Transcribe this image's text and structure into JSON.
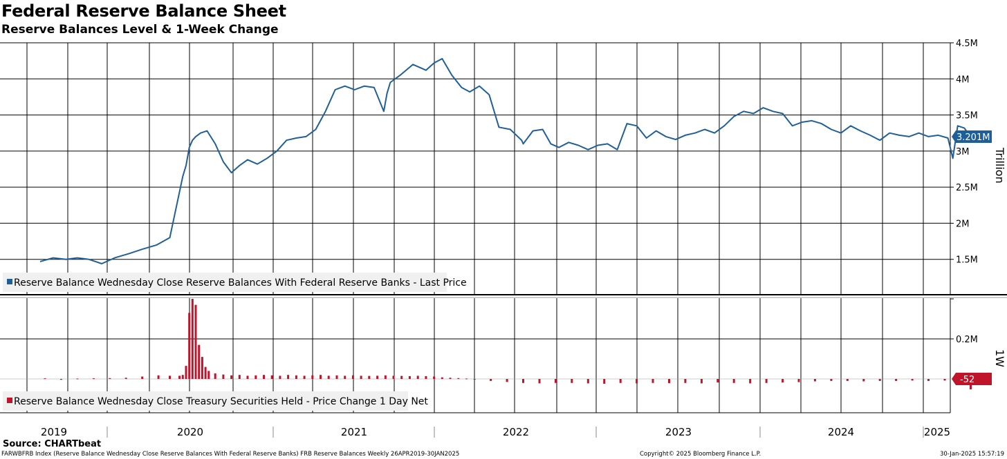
{
  "title": "Federal Reserve Balance Sheet",
  "subtitle": "Reserve Balances Level & 1-Week Change",
  "source": "Source: CHARTbeat",
  "footer": {
    "left": "FARWBFRB Index (Reserve Balance Wednesday Close Reserve Balances With Federal Reserve Banks) FRB Reserve Balances  Weekly 26APR2019-30JAN2025",
    "middle": "Copyright© 2025 Bloomberg Finance L.P.",
    "right": "30-Jan-2025 15:57:19"
  },
  "colors": {
    "line": "#1f5f99",
    "bar": "#c0142a",
    "grid": "#000000"
  },
  "chart_data": [
    {
      "type": "line",
      "ylabel": "Trillion",
      "ylim": [
        1.0,
        4.5
      ],
      "yticks": [
        {
          "value": 4.5,
          "label": "4.5M"
        },
        {
          "value": 4.0,
          "label": "4M"
        },
        {
          "value": 3.5,
          "label": "3.5M"
        },
        {
          "value": 3.0,
          "label": "3M"
        },
        {
          "value": 2.5,
          "label": "2.5M"
        },
        {
          "value": 2.0,
          "label": "2M"
        },
        {
          "value": 1.5,
          "label": "1.5M"
        }
      ],
      "last_value_label": "3.201M",
      "legend": "Reserve Balance Wednesday Close Reserve Balances With Federal Reserve Banks - Last Price",
      "series": [
        {
          "name": "Reserve Balance Wednesday Close Reserve Balances With Federal Reserve Banks - Last Price",
          "x": [
            2019.32,
            2019.4,
            2019.48,
            2019.55,
            2019.62,
            2019.7,
            2019.78,
            2019.87,
            2019.95,
            2020.04,
            2020.12,
            2020.2,
            2020.22,
            2020.24,
            2020.26,
            2020.28,
            2020.31,
            2020.35,
            2020.4,
            2020.45,
            2020.5,
            2020.55,
            2020.6,
            2020.66,
            2020.72,
            2020.78,
            2020.84,
            2020.9,
            2020.96,
            2021.02,
            2021.08,
            2021.14,
            2021.2,
            2021.26,
            2021.32,
            2021.38,
            2021.44,
            2021.46,
            2021.48,
            2021.54,
            2021.62,
            2021.7,
            2021.75,
            2021.8,
            2021.86,
            2021.92,
            2021.97,
            2022.03,
            2022.09,
            2022.15,
            2022.22,
            2022.29,
            2022.3,
            2022.36,
            2022.42,
            2022.47,
            2022.52,
            2022.58,
            2022.64,
            2022.7,
            2022.76,
            2022.82,
            2022.88,
            2022.94,
            2023.0,
            2023.06,
            2023.12,
            2023.18,
            2023.24,
            2023.3,
            2023.36,
            2023.42,
            2023.48,
            2023.54,
            2023.6,
            2023.66,
            2023.72,
            2023.78,
            2023.84,
            2023.9,
            2023.96,
            2024.02,
            2024.08,
            2024.14,
            2024.2,
            2024.26,
            2024.32,
            2024.38,
            2024.44,
            2024.5,
            2024.56,
            2024.62,
            2024.68,
            2024.74,
            2024.8,
            2024.86,
            2024.92,
            2024.95,
            2024.98,
            2025.02,
            2025.06
          ],
          "values": [
            1.47,
            1.52,
            1.5,
            1.52,
            1.5,
            1.44,
            1.52,
            1.58,
            1.64,
            1.7,
            1.8,
            2.65,
            2.8,
            3.05,
            3.15,
            3.2,
            3.25,
            3.28,
            3.1,
            2.85,
            2.7,
            2.8,
            2.88,
            2.82,
            2.9,
            3.0,
            3.15,
            3.18,
            3.2,
            3.3,
            3.55,
            3.85,
            3.9,
            3.85,
            3.9,
            3.88,
            3.55,
            3.8,
            3.95,
            4.05,
            4.2,
            4.12,
            4.22,
            4.28,
            4.05,
            3.88,
            3.82,
            3.9,
            3.78,
            3.33,
            3.3,
            3.15,
            3.1,
            3.28,
            3.3,
            3.1,
            3.05,
            3.12,
            3.08,
            3.02,
            3.08,
            3.1,
            3.02,
            3.38,
            3.35,
            3.18,
            3.28,
            3.2,
            3.16,
            3.22,
            3.25,
            3.3,
            3.25,
            3.35,
            3.48,
            3.55,
            3.52,
            3.6,
            3.55,
            3.52,
            3.35,
            3.4,
            3.42,
            3.38,
            3.3,
            3.25,
            3.35,
            3.28,
            3.22,
            3.15,
            3.25,
            3.22,
            3.2,
            3.25,
            3.2,
            3.22,
            3.18,
            2.9,
            3.35,
            3.32,
            3.2
          ]
        }
      ]
    },
    {
      "type": "bar",
      "ylabel": "1W",
      "ylim": [
        -0.1,
        0.55
      ],
      "yticks": [
        {
          "value": 0.2,
          "label": "0.2M"
        }
      ],
      "last_value_label": "-52",
      "legend": "Reserve Balance Wednesday Close Treasury Securities Held - Price Change 1 Day Net",
      "series": [
        {
          "name": "Reserve Balance Wednesday Close Treasury Securities Held - Price Change 1 Day Net",
          "x": [
            2019.35,
            2019.45,
            2019.55,
            2019.65,
            2019.75,
            2019.85,
            2019.95,
            2020.05,
            2020.12,
            2020.18,
            2020.2,
            2020.22,
            2020.24,
            2020.26,
            2020.28,
            2020.3,
            2020.32,
            2020.34,
            2020.36,
            2020.4,
            2020.45,
            2020.5,
            2020.55,
            2020.6,
            2020.65,
            2020.7,
            2020.75,
            2020.8,
            2020.85,
            2020.9,
            2020.95,
            2021.0,
            2021.05,
            2021.1,
            2021.15,
            2021.2,
            2021.25,
            2021.3,
            2021.35,
            2021.4,
            2021.45,
            2021.5,
            2021.55,
            2021.6,
            2021.65,
            2021.7,
            2021.75,
            2021.8,
            2021.85,
            2021.9,
            2021.95,
            2022.0,
            2022.1,
            2022.2,
            2022.3,
            2022.4,
            2022.5,
            2022.6,
            2022.7,
            2022.8,
            2022.9,
            2023.0,
            2023.1,
            2023.2,
            2023.3,
            2023.4,
            2023.5,
            2023.6,
            2023.7,
            2023.8,
            2023.9,
            2024.0,
            2024.1,
            2024.2,
            2024.3,
            2024.4,
            2024.5,
            2024.6,
            2024.7,
            2024.8,
            2024.9,
            2025.0,
            2025.06
          ],
          "values": [
            0.003,
            -0.004,
            0.002,
            0.003,
            0.004,
            0.006,
            0.012,
            0.018,
            0.016,
            0.016,
            0.02,
            0.065,
            0.33,
            0.4,
            0.37,
            0.17,
            0.11,
            0.06,
            0.04,
            0.028,
            0.022,
            0.018,
            0.02,
            0.016,
            0.018,
            0.02,
            0.018,
            0.016,
            0.02,
            0.018,
            0.016,
            0.018,
            0.02,
            0.016,
            0.018,
            0.016,
            0.018,
            0.016,
            0.015,
            0.016,
            0.018,
            0.016,
            0.015,
            0.014,
            0.016,
            0.014,
            0.012,
            0.008,
            0.006,
            0.004,
            0.002,
            -0.002,
            -0.01,
            -0.015,
            -0.02,
            -0.022,
            -0.02,
            -0.02,
            -0.022,
            -0.024,
            -0.02,
            -0.022,
            -0.02,
            -0.021,
            -0.02,
            -0.022,
            -0.018,
            -0.02,
            -0.022,
            -0.02,
            -0.018,
            -0.016,
            -0.012,
            -0.01,
            -0.01,
            -0.012,
            -0.01,
            -0.01,
            -0.008,
            -0.01,
            -0.008,
            -0.01,
            -0.052
          ]
        }
      ]
    }
  ],
  "x_axis": {
    "years": [
      "2019",
      "2020",
      "2021",
      "2022",
      "2023",
      "2024",
      "2025"
    ]
  }
}
